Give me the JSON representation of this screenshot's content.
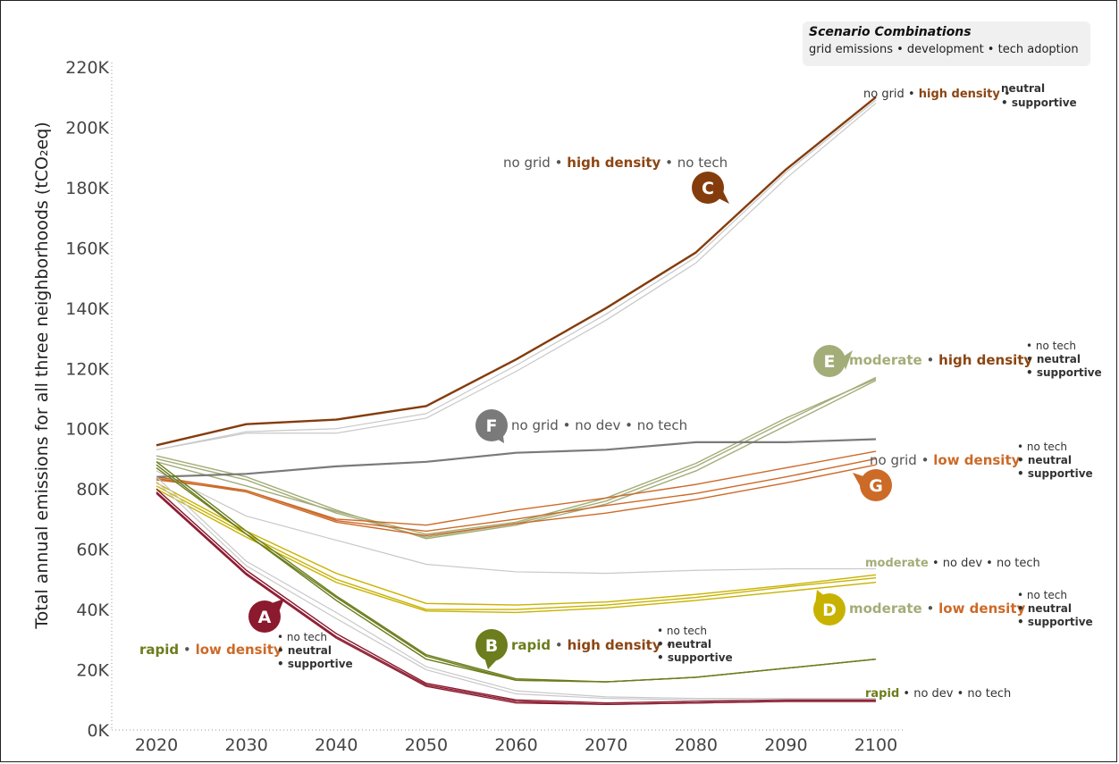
{
  "legend": {
    "title": "Scenario Combinations",
    "subtitle": "grid emissions • development • tech adoption"
  },
  "colors": {
    "rapid": "#6b7d1c",
    "moderate": "#a3ad78",
    "no_grid": "#555555",
    "high_density": "#8b4513",
    "low_density": "#cc6a28",
    "neutral": "#7b4e8e",
    "supportive": "#4a2a50",
    "bubble_A": "#8b1a2f",
    "bubble_B": "#6b7d1c",
    "bubble_C": "#843c0c",
    "bubble_D": "#c8b200",
    "bubble_E": "#a3ad78",
    "bubble_F": "#7a7a7a",
    "bubble_G": "#cc6a28"
  },
  "chart_data": {
    "type": "line",
    "ylabel": "Total annual emissions for all three neighborhoods (tCO₂eq)",
    "ylim": [
      0,
      220000
    ],
    "yticks": [
      {
        "v": 0,
        "label": "0K"
      },
      {
        "v": 20000,
        "label": "20K"
      },
      {
        "v": 40000,
        "label": "40K"
      },
      {
        "v": 60000,
        "label": "60K"
      },
      {
        "v": 80000,
        "label": "80K"
      },
      {
        "v": 100000,
        "label": "100K"
      },
      {
        "v": 120000,
        "label": "120K"
      },
      {
        "v": 140000,
        "label": "140K"
      },
      {
        "v": 160000,
        "label": "160K"
      },
      {
        "v": 180000,
        "label": "180K"
      },
      {
        "v": 200000,
        "label": "200K"
      },
      {
        "v": 220000,
        "label": "220K"
      }
    ],
    "x": [
      2020,
      2030,
      2040,
      2050,
      2060,
      2070,
      2080,
      2090,
      2100
    ],
    "xtick_labels": [
      "2020",
      "2030",
      "2040",
      "2050",
      "2060",
      "2070",
      "2080",
      "2090",
      "2100"
    ],
    "series": [
      {
        "color": "#c8c8c8",
        "width": 1.2,
        "values": [
          93000,
          99000,
          100000,
          105000,
          121000,
          138000,
          157000,
          185000,
          209000
        ]
      },
      {
        "color": "#c8c8c8",
        "width": 1.2,
        "values": [
          93000,
          98500,
          98500,
          103500,
          119000,
          136000,
          155000,
          183000,
          208000
        ]
      },
      {
        "color": "#843c0c",
        "width": 2.4,
        "values": [
          94500,
          101500,
          103000,
          107500,
          123000,
          140000,
          158500,
          186000,
          210000
        ]
      },
      {
        "color": "#a3ad78",
        "width": 1.4,
        "values": [
          91000,
          84000,
          73000,
          63500,
          68000,
          75000,
          86000,
          101000,
          116000
        ]
      },
      {
        "color": "#a3ad78",
        "width": 1.4,
        "values": [
          90000,
          83000,
          72000,
          64000,
          68500,
          76000,
          87500,
          102500,
          117000
        ]
      },
      {
        "color": "#a3ad78",
        "width": 1.4,
        "values": [
          89000,
          81000,
          72500,
          65000,
          69000,
          77000,
          88500,
          103500,
          116500
        ]
      },
      {
        "color": "#cc6a28",
        "width": 1.4,
        "values": [
          84000,
          79500,
          70000,
          68000,
          73000,
          77000,
          81500,
          87000,
          92500
        ]
      },
      {
        "color": "#cc6a28",
        "width": 1.4,
        "values": [
          83000,
          79500,
          69500,
          66000,
          70000,
          74500,
          78500,
          84000,
          90000
        ]
      },
      {
        "color": "#cc6a28",
        "width": 1.4,
        "values": [
          83500,
          79000,
          69000,
          64500,
          68500,
          72000,
          76500,
          82000,
          88000
        ]
      },
      {
        "color": "#7a7a7a",
        "width": 2.2,
        "values": [
          84000,
          85000,
          87500,
          89000,
          92000,
          93000,
          95500,
          95500,
          96500
        ]
      },
      {
        "color": "#c8c8c8",
        "width": 1.2,
        "values": [
          86000,
          71000,
          63000,
          55000,
          52500,
          52000,
          53000,
          53500,
          53500
        ]
      },
      {
        "color": "#c8b200",
        "width": 1.4,
        "values": [
          82000,
          66000,
          52000,
          42000,
          41500,
          42500,
          45000,
          48000,
          51500
        ]
      },
      {
        "color": "#c8b200",
        "width": 1.4,
        "values": [
          81000,
          65000,
          50000,
          40000,
          40000,
          41500,
          44000,
          47500,
          50500
        ]
      },
      {
        "color": "#c8b200",
        "width": 1.4,
        "values": [
          80000,
          64000,
          49000,
          39500,
          39000,
          40500,
          43000,
          46000,
          49000
        ]
      },
      {
        "color": "#6b7d1c",
        "width": 1.4,
        "values": [
          89000,
          66000,
          44500,
          25000,
          17000,
          16000,
          17500,
          20500,
          23500
        ]
      },
      {
        "color": "#6b7d1c",
        "width": 1.4,
        "values": [
          88000,
          65000,
          44000,
          24500,
          16500,
          16000,
          17500,
          20500,
          23500
        ]
      },
      {
        "color": "#6b7d1c",
        "width": 1.4,
        "values": [
          87000,
          65000,
          43000,
          23500,
          16500,
          16000,
          17500,
          20500,
          23500
        ]
      },
      {
        "color": "#c8c8c8",
        "width": 1.2,
        "values": [
          84000,
          56000,
          39000,
          21000,
          13000,
          11000,
          10500,
          10500,
          10500
        ]
      },
      {
        "color": "#c8c8c8",
        "width": 1.2,
        "values": [
          82500,
          54500,
          37000,
          20000,
          12000,
          10500,
          10000,
          10000,
          10000
        ]
      },
      {
        "color": "#8b1a2f",
        "width": 1.4,
        "values": [
          80000,
          53000,
          32000,
          15500,
          10000,
          9000,
          9500,
          10000,
          10000
        ]
      },
      {
        "color": "#8b1a2f",
        "width": 1.4,
        "values": [
          79000,
          52000,
          31000,
          15000,
          9500,
          8500,
          9000,
          9500,
          9500
        ]
      },
      {
        "color": "#8b1a2f",
        "width": 1.4,
        "values": [
          78500,
          51500,
          30500,
          14500,
          9000,
          8500,
          9000,
          9500,
          9500
        ]
      }
    ]
  },
  "annotations": {
    "a": {
      "bubble": "A",
      "w1": "rapid",
      "sep": "•",
      "w2": "low density",
      "t1": "• no tech",
      "t2": "neutral",
      "t3": "supportive"
    },
    "b": {
      "bubble": "B",
      "w1": "rapid",
      "sep": "•",
      "w2": "high density",
      "sep2": "•",
      "t1": "• no tech",
      "t2": "neutral",
      "t3": "supportive"
    },
    "c": {
      "bubble": "C",
      "w1": "no grid",
      "sep": "•",
      "w2": "high density",
      "sep2": "•",
      "w3": "no tech"
    },
    "c_end": {
      "w1": "no grid",
      "sep": "•",
      "w2": "high density",
      "sep2": "•",
      "t2": "neutral",
      "t3": "supportive"
    },
    "d": {
      "bubble": "D",
      "w1": "moderate",
      "sep": "•",
      "w2": "low density",
      "t1": "• no tech",
      "t2": "neutral",
      "t3": "supportive"
    },
    "e": {
      "bubble": "E",
      "w1": "moderate",
      "sep": "•",
      "w2": "high density",
      "t1": "• no tech",
      "t2": "neutral",
      "t3": "supportive"
    },
    "f": {
      "bubble": "F",
      "w1": "no grid",
      "sep": "•",
      "w2": "no dev",
      "sep2": "•",
      "w3": "no tech"
    },
    "g": {
      "bubble": "G",
      "w1": "no grid",
      "sep": "•",
      "w2": "low density",
      "t1": "• no tech",
      "t2": "neutral",
      "t3": "supportive"
    },
    "mod_end": {
      "w1": "moderate",
      "rest": "• no dev • no tech"
    },
    "rapid_end": {
      "w1": "rapid",
      "rest": "• no dev • no tech"
    }
  }
}
